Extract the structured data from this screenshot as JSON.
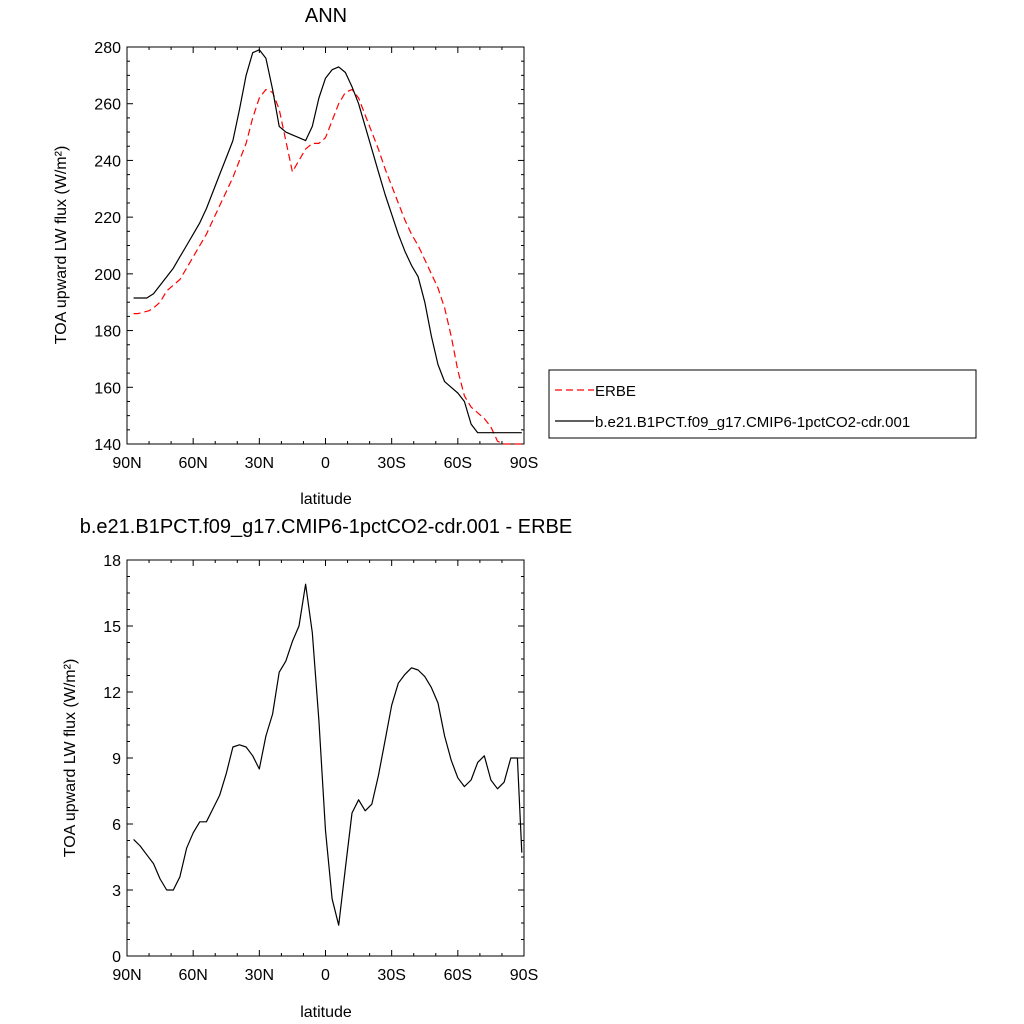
{
  "chart_data": [
    {
      "type": "line",
      "title": "ANN",
      "xlabel": "latitude",
      "ylabel": "TOA upward LW flux (W/m²)",
      "xlim": [
        90,
        -90
      ],
      "ylim": [
        140,
        280
      ],
      "x_ticks": [
        {
          "value": 90,
          "label": "90N"
        },
        {
          "value": 60,
          "label": "60N"
        },
        {
          "value": 30,
          "label": "30N"
        },
        {
          "value": 0,
          "label": "0"
        },
        {
          "value": -30,
          "label": "30S"
        },
        {
          "value": -60,
          "label": "60S"
        },
        {
          "value": -90,
          "label": "90S"
        }
      ],
      "y_ticks": [
        140,
        160,
        180,
        200,
        220,
        240,
        260,
        280
      ],
      "legend_position": "outside-right",
      "series": [
        {
          "name": "ERBE",
          "color": "#ff0000",
          "dash": true,
          "x": [
            87,
            85,
            80,
            78,
            75,
            72,
            69,
            66,
            63,
            60,
            57,
            54,
            51,
            48,
            45,
            42,
            39,
            36,
            33,
            30,
            27,
            24,
            21,
            18,
            15,
            12,
            9,
            6,
            3,
            0,
            -3,
            -6,
            -9,
            -12,
            -15,
            -18,
            -21,
            -24,
            -27,
            -30,
            -33,
            -36,
            -39,
            -42,
            -45,
            -48,
            -51,
            -54,
            -57,
            -60,
            -63,
            -66,
            -69,
            -72,
            -75,
            -78,
            -81,
            -84,
            -87,
            -89
          ],
          "y": [
            186,
            186,
            187,
            188,
            190,
            194,
            196,
            198,
            202,
            206,
            210,
            214,
            219,
            224,
            229,
            234,
            240,
            246,
            255,
            262,
            265,
            264,
            258,
            247,
            236,
            240,
            244,
            246,
            246,
            248,
            254,
            260,
            264,
            265,
            262,
            256,
            250,
            244,
            237,
            231,
            225,
            219,
            214,
            210,
            205,
            200,
            195,
            188,
            178,
            166,
            157,
            153,
            151,
            149,
            146,
            141,
            140,
            140,
            140,
            140
          ]
        },
        {
          "name": "b.e21.B1PCT.f09_g17.CMIP6-1pctCO2-cdr.001",
          "color": "#000000",
          "dash": false,
          "x": [
            87,
            84,
            81,
            78,
            75,
            72,
            69,
            66,
            63,
            60,
            57,
            54,
            51,
            48,
            45,
            42,
            39,
            36,
            33,
            30,
            27,
            24,
            21,
            18,
            15,
            12,
            9,
            6,
            3,
            0,
            -3,
            -6,
            -9,
            -12,
            -15,
            -18,
            -21,
            -24,
            -27,
            -30,
            -33,
            -36,
            -39,
            -42,
            -45,
            -48,
            -51,
            -54,
            -57,
            -60,
            -63,
            -66,
            -69,
            -72,
            -75,
            -78,
            -81,
            -84,
            -87,
            -89
          ],
          "y": [
            191.5,
            191.5,
            191.5,
            193,
            196,
            199,
            202,
            206,
            210,
            214,
            218,
            223,
            229,
            235,
            241,
            247,
            258,
            270,
            278,
            279,
            276,
            265,
            252,
            250,
            249,
            248,
            247,
            252,
            262,
            269,
            272,
            273,
            271,
            266,
            260,
            252,
            244,
            236,
            228,
            221,
            214,
            208,
            203,
            199,
            190,
            178,
            168,
            162,
            160,
            158,
            155,
            147,
            144,
            144,
            144,
            144,
            144,
            144,
            144,
            144
          ]
        }
      ]
    },
    {
      "type": "line",
      "title": "b.e21.B1PCT.f09_g17.CMIP6-1pctCO2-cdr.001 - ERBE",
      "xlabel": "latitude",
      "ylabel": "TOA upward LW flux (W/m²)",
      "xlim": [
        90,
        -90
      ],
      "ylim": [
        0,
        18
      ],
      "x_ticks": [
        {
          "value": 90,
          "label": "90N"
        },
        {
          "value": 60,
          "label": "60N"
        },
        {
          "value": 30,
          "label": "30N"
        },
        {
          "value": 0,
          "label": "0"
        },
        {
          "value": -30,
          "label": "30S"
        },
        {
          "value": -60,
          "label": "60S"
        },
        {
          "value": -90,
          "label": "90S"
        }
      ],
      "y_ticks": [
        0,
        3,
        6,
        9,
        12,
        15,
        18
      ],
      "series": [
        {
          "color": "#000000",
          "dash": false,
          "x": [
            87,
            84,
            81,
            78,
            75,
            72,
            69,
            66,
            63,
            60,
            57,
            54,
            51,
            48,
            45,
            42,
            39,
            36,
            33,
            30,
            27,
            24,
            21,
            18,
            15,
            12,
            9,
            6,
            3,
            0,
            -3,
            -6,
            -9,
            -12,
            -15,
            -18,
            -21,
            -24,
            -27,
            -30,
            -33,
            -36,
            -39,
            -42,
            -45,
            -48,
            -51,
            -54,
            -57,
            -60,
            -63,
            -66,
            -69,
            -72,
            -75,
            -78,
            -81,
            -84,
            -87,
            -89
          ],
          "y": [
            5.3,
            5.0,
            4.6,
            4.2,
            3.5,
            3.0,
            3.0,
            3.6,
            4.9,
            5.6,
            6.1,
            6.1,
            6.7,
            7.3,
            8.3,
            9.5,
            9.6,
            9.5,
            9.1,
            8.5,
            10.0,
            11.0,
            12.9,
            13.4,
            14.3,
            15.0,
            16.9,
            14.7,
            10.7,
            5.7,
            2.6,
            1.4,
            4.0,
            6.5,
            7.1,
            6.6,
            6.9,
            8.2,
            9.8,
            11.4,
            12.4,
            12.8,
            13.1,
            13.0,
            12.7,
            12.2,
            11.5,
            10.0,
            8.9,
            8.1,
            7.7,
            8.0,
            8.8,
            9.1,
            8.0,
            7.6,
            7.9,
            9.0,
            9.0,
            4.7
          ]
        }
      ]
    }
  ]
}
